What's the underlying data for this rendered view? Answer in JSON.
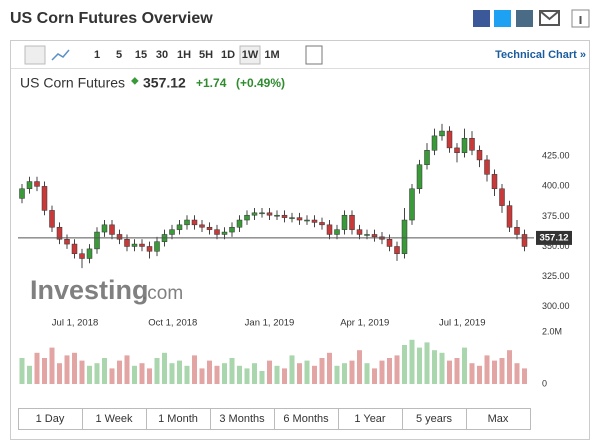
{
  "header": {
    "title": "US Corn Futures Overview"
  },
  "toolbar": {
    "intervals": [
      "1",
      "5",
      "15",
      "30",
      "1H",
      "5H",
      "1D",
      "1W",
      "1M"
    ],
    "active": "1W",
    "link": "Technical Chart »"
  },
  "quote": {
    "name": "US Corn Futures",
    "change": "+1.74",
    "change_pct": "(+0.49%)"
  },
  "watermark": {
    "brand": "Investing",
    "suffix": ".com"
  },
  "ranges": [
    "1 Day",
    "1 Week",
    "1 Month",
    "3 Months",
    "6 Months",
    "1 Year",
    "5 years",
    "Max"
  ],
  "chart_data": {
    "type": "candlestick",
    "open": [
      390,
      398,
      404,
      400,
      380,
      366,
      356,
      352,
      344,
      340,
      348,
      362,
      368,
      360,
      356,
      350,
      352,
      350,
      346,
      354,
      360,
      364,
      368,
      372,
      368,
      366,
      364,
      360,
      362,
      366,
      372,
      376,
      378,
      378,
      376,
      376,
      374,
      374,
      372,
      372,
      370,
      368,
      360,
      364,
      376,
      364,
      360,
      360,
      358,
      356,
      350,
      344,
      372,
      398,
      418,
      430,
      442,
      446,
      432,
      428,
      440,
      430,
      422,
      410,
      398,
      384,
      366,
      360
    ],
    "high": [
      402,
      408,
      408,
      404,
      384,
      370,
      360,
      356,
      348,
      352,
      366,
      372,
      372,
      364,
      360,
      356,
      356,
      354,
      358,
      364,
      368,
      372,
      376,
      376,
      372,
      370,
      368,
      366,
      370,
      376,
      380,
      382,
      382,
      382,
      380,
      380,
      378,
      378,
      376,
      376,
      374,
      372,
      368,
      380,
      380,
      368,
      364,
      364,
      362,
      360,
      354,
      382,
      402,
      422,
      436,
      448,
      452,
      450,
      436,
      448,
      446,
      434,
      426,
      414,
      402,
      388,
      372,
      364
    ],
    "low": [
      386,
      394,
      396,
      376,
      362,
      352,
      348,
      340,
      332,
      336,
      344,
      358,
      356,
      352,
      346,
      346,
      346,
      340,
      342,
      350,
      356,
      360,
      364,
      364,
      362,
      360,
      356,
      356,
      358,
      362,
      368,
      372,
      374,
      372,
      372,
      370,
      370,
      368,
      368,
      366,
      364,
      356,
      356,
      360,
      360,
      356,
      356,
      354,
      352,
      346,
      338,
      340,
      368,
      394,
      414,
      426,
      438,
      428,
      420,
      424,
      426,
      416,
      404,
      392,
      378,
      362,
      356,
      346
    ],
    "close": [
      398,
      404,
      400,
      380,
      366,
      356,
      352,
      344,
      340,
      348,
      362,
      368,
      360,
      356,
      350,
      352,
      350,
      346,
      354,
      360,
      364,
      368,
      372,
      368,
      366,
      364,
      360,
      362,
      366,
      372,
      376,
      378,
      378,
      376,
      376,
      374,
      374,
      372,
      372,
      370,
      368,
      360,
      364,
      376,
      364,
      360,
      360,
      358,
      356,
      350,
      344,
      372,
      398,
      418,
      430,
      442,
      446,
      432,
      428,
      440,
      430,
      422,
      410,
      398,
      384,
      366,
      360,
      350
    ],
    "volume": [
      1.0,
      0.7,
      1.2,
      1.0,
      1.4,
      0.8,
      1.1,
      1.2,
      0.9,
      0.7,
      0.8,
      1.0,
      0.6,
      0.9,
      1.1,
      0.7,
      0.8,
      0.6,
      1.0,
      1.2,
      0.8,
      0.9,
      0.7,
      1.1,
      0.6,
      0.9,
      0.7,
      0.8,
      1.0,
      0.7,
      0.6,
      0.8,
      0.5,
      0.9,
      0.7,
      0.6,
      1.1,
      0.8,
      0.9,
      0.7,
      1.0,
      1.2,
      0.7,
      0.8,
      0.9,
      1.3,
      0.8,
      0.6,
      0.9,
      1.0,
      1.1,
      1.5,
      1.7,
      1.4,
      1.6,
      1.3,
      1.2,
      0.9,
      1.0,
      1.4,
      0.8,
      0.7,
      1.1,
      0.9,
      1.0,
      1.3,
      0.8,
      0.6
    ],
    "last_value": 357.12,
    "up_color": "#3a9a3a",
    "down_color": "#c83a3a",
    "up_volume_color": "#a9d6ac",
    "down_volume_color": "#e3a4a4",
    "ylim": [
      293,
      476
    ],
    "yticks": [
      {
        "value": 300,
        "label": "300.00"
      },
      {
        "value": 325,
        "label": "325.00"
      },
      {
        "value": 350,
        "label": "350.00"
      },
      {
        "value": 375,
        "label": "375.00"
      },
      {
        "value": 400,
        "label": "400.00"
      },
      {
        "value": 425,
        "label": "425.00"
      }
    ],
    "volume_ylim": [
      0,
      2.2
    ],
    "volume_ticks": [
      0,
      {
        "value": 2,
        "label": "2.0M"
      }
    ],
    "xticks": [
      {
        "value": 7.07,
        "label": "Jul 1, 2018"
      },
      {
        "value": 20.1,
        "label": "Oct 1, 2018"
      },
      {
        "value": 33,
        "label": "Jan 1, 2019"
      },
      {
        "value": 45.7,
        "label": "Apr 1, 2019"
      },
      {
        "value": 58.7,
        "label": "Jul 1, 2019"
      }
    ]
  }
}
